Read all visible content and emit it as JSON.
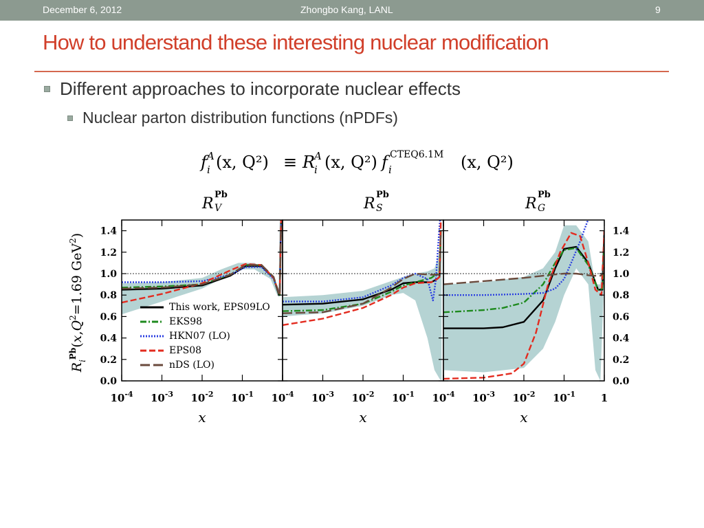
{
  "header": {
    "date": "December 6, 2012",
    "author": "Zhongbo Kang, LANL",
    "page": "9"
  },
  "title": "How to understand these interesting nuclear modification",
  "bullets": [
    {
      "level": 1,
      "text": "Different approaches to incorporate nuclear effects"
    },
    {
      "level": 2,
      "text": "Nuclear parton distribution functions (nPDFs)"
    }
  ],
  "colors": {
    "header_bg": "#8c9a90",
    "title": "#d13f2a",
    "rule": "#d5674f",
    "band": "#b5d3d3"
  },
  "equation": {
    "f": "f",
    "i": "i",
    "A": "A",
    "args": "(x, Q²)",
    "equiv": "≡",
    "R": "R",
    "CTEQ": "CTEQ6.1M"
  },
  "chart_data": {
    "type": "line",
    "x_scale": "log",
    "xlim": [
      0.0001,
      1
    ],
    "ylim": [
      0.0,
      1.5
    ],
    "x_ticks": [
      "10-4",
      "10-3",
      "10-2",
      "10-1",
      "10-4"
    ],
    "x_ticks_last": [
      "10-4",
      "10-3",
      "10-2",
      "10-1",
      "1"
    ],
    "y_ticks": [
      "1.4",
      "1.2",
      "1.0",
      "0.8",
      "0.6",
      "0.4",
      "0.2",
      "0.0"
    ],
    "xlabel": "x",
    "ylabel": "R_i^Pb(x,Q²=1.69 GeV²)",
    "panel_titles": [
      "R_V^Pb",
      "R_S^Pb",
      "R_G^Pb"
    ],
    "reference_line": 1.0,
    "legend": {
      "placement": "lower-left",
      "entries": [
        {
          "name": "This work, EPS09LO",
          "color": "#000000",
          "dash": "solid"
        },
        {
          "name": "EKS98",
          "color": "#1e8a1e",
          "dash": "dashdot"
        },
        {
          "name": "HKN07 (LO)",
          "color": "#2b3fe0",
          "dash": "dotted"
        },
        {
          "name": "EPS08",
          "color": "#e32b1f",
          "dash": "dashed"
        },
        {
          "name": "nDS (LO)",
          "color": "#6a4a3c",
          "dash": "longdash"
        }
      ]
    },
    "panels": [
      {
        "name": "R_V^Pb",
        "band": {
          "x": [
            0.0001,
            0.001,
            0.01,
            0.03,
            0.08,
            0.2,
            0.5,
            0.7,
            0.8,
            0.85
          ],
          "upper": [
            0.91,
            0.92,
            0.96,
            1.04,
            1.1,
            1.1,
            1.0,
            0.9,
            0.86,
            1.6
          ],
          "lower": [
            0.62,
            0.74,
            0.86,
            0.95,
            1.04,
            1.04,
            0.95,
            0.82,
            0.78,
            0.8
          ]
        },
        "series": [
          {
            "name": "This work, EPS09LO",
            "x": [
              0.0001,
              0.001,
              0.01,
              0.05,
              0.12,
              0.3,
              0.6,
              0.8,
              0.85,
              0.92
            ],
            "y": [
              0.85,
              0.86,
              0.89,
              0.98,
              1.07,
              1.07,
              0.96,
              0.81,
              0.8,
              1.55
            ]
          },
          {
            "name": "EKS98",
            "x": [
              0.0001,
              0.001,
              0.01,
              0.05,
              0.12,
              0.3,
              0.6,
              0.8,
              0.85,
              0.92
            ],
            "y": [
              0.87,
              0.88,
              0.9,
              0.99,
              1.08,
              1.08,
              0.96,
              0.82,
              0.8,
              1.5
            ]
          },
          {
            "name": "HKN07 (LO)",
            "x": [
              0.0001,
              0.001,
              0.01,
              0.05,
              0.12,
              0.3,
              0.6,
              0.8,
              0.85,
              0.92
            ],
            "y": [
              0.92,
              0.92,
              0.93,
              0.99,
              1.06,
              1.06,
              0.95,
              0.83,
              0.82,
              1.5
            ]
          },
          {
            "name": "EPS08",
            "x": [
              0.0001,
              0.001,
              0.01,
              0.05,
              0.12,
              0.3,
              0.6,
              0.8,
              0.85,
              0.92
            ],
            "y": [
              0.73,
              0.81,
              0.91,
              1.03,
              1.09,
              1.08,
              0.96,
              0.83,
              0.82,
              1.55
            ]
          },
          {
            "name": "nDS (LO)",
            "x": [
              0.0001,
              0.001,
              0.01,
              0.05,
              0.12,
              0.3,
              0.6,
              0.8,
              0.85,
              0.92
            ],
            "y": [
              0.86,
              0.87,
              0.9,
              0.99,
              1.08,
              1.08,
              0.97,
              0.82,
              0.8,
              1.45
            ]
          }
        ]
      },
      {
        "name": "R_S^Pb",
        "band": {
          "x": [
            0.0001,
            0.001,
            0.01,
            0.05,
            0.1,
            0.2,
            0.4,
            0.6,
            0.8,
            0.9
          ],
          "upper": [
            0.78,
            0.8,
            0.84,
            0.93,
            0.97,
            1.0,
            1.02,
            1.05,
            1.2,
            1.5
          ],
          "lower": [
            0.6,
            0.63,
            0.7,
            0.8,
            0.82,
            0.75,
            0.4,
            0.1,
            0.02,
            0.0
          ]
        },
        "series": [
          {
            "name": "This work, EPS09LO",
            "x": [
              0.0001,
              0.001,
              0.01,
              0.05,
              0.1,
              0.2,
              0.5,
              0.7,
              0.8,
              0.86
            ],
            "y": [
              0.71,
              0.72,
              0.76,
              0.85,
              0.91,
              0.92,
              0.92,
              0.95,
              0.97,
              1.4
            ]
          },
          {
            "name": "EKS98",
            "x": [
              0.0001,
              0.001,
              0.01,
              0.05,
              0.1,
              0.2,
              0.5,
              0.7,
              0.8,
              0.86
            ],
            "y": [
              0.65,
              0.66,
              0.72,
              0.83,
              0.89,
              0.92,
              0.96,
              1.0,
              1.02,
              1.4
            ]
          },
          {
            "name": "HKN07 (LO)",
            "x": [
              0.0001,
              0.001,
              0.01,
              0.05,
              0.1,
              0.2,
              0.4,
              0.55,
              0.65,
              0.75,
              0.82
            ],
            "y": [
              0.74,
              0.74,
              0.78,
              0.89,
              0.96,
              1.0,
              0.95,
              0.75,
              0.95,
              1.3,
              1.5
            ]
          },
          {
            "name": "EPS08",
            "x": [
              0.0001,
              0.001,
              0.01,
              0.05,
              0.1,
              0.2,
              0.5,
              0.7,
              0.8,
              0.86
            ],
            "y": [
              0.52,
              0.58,
              0.68,
              0.8,
              0.87,
              0.91,
              0.92,
              0.95,
              0.97,
              1.5
            ]
          },
          {
            "name": "nDS (LO)",
            "x": [
              0.0001,
              0.001,
              0.01,
              0.05,
              0.1,
              0.2,
              0.5,
              0.7,
              0.8,
              0.86
            ],
            "y": [
              0.63,
              0.64,
              0.72,
              0.87,
              0.95,
              1.0,
              0.99,
              0.99,
              0.99,
              1.4
            ]
          }
        ]
      },
      {
        "name": "R_G^Pb",
        "band": {
          "x": [
            0.0001,
            0.001,
            0.01,
            0.03,
            0.06,
            0.1,
            0.2,
            0.4,
            0.6,
            0.8,
            1.0
          ],
          "upper": [
            0.9,
            0.92,
            0.97,
            1.05,
            1.2,
            1.45,
            1.45,
            1.3,
            0.9,
            0.9,
            1.4
          ],
          "lower": [
            0.1,
            0.08,
            0.12,
            0.3,
            0.55,
            0.8,
            1.05,
            0.9,
            0.1,
            0.0,
            1.0
          ]
        },
        "series": [
          {
            "name": "This work, EPS09LO",
            "x": [
              0.0001,
              0.001,
              0.003,
              0.01,
              0.03,
              0.06,
              0.1,
              0.2,
              0.4,
              0.7,
              0.9,
              1.0
            ],
            "y": [
              0.49,
              0.49,
              0.5,
              0.55,
              0.75,
              1.05,
              1.23,
              1.25,
              1.1,
              0.85,
              0.85,
              1.4
            ]
          },
          {
            "name": "EKS98",
            "x": [
              0.0001,
              0.001,
              0.003,
              0.01,
              0.03,
              0.06,
              0.1,
              0.2,
              0.4,
              0.7,
              0.9,
              1.0
            ],
            "y": [
              0.64,
              0.66,
              0.68,
              0.73,
              0.9,
              1.1,
              1.22,
              1.24,
              1.08,
              0.85,
              0.86,
              1.3
            ]
          },
          {
            "name": "HKN07 (LO)",
            "x": [
              0.0001,
              0.001,
              0.01,
              0.03,
              0.06,
              0.1,
              0.15,
              0.25,
              0.35,
              0.5
            ],
            "y": [
              0.8,
              0.8,
              0.81,
              0.82,
              0.86,
              0.95,
              1.1,
              1.3,
              1.45,
              1.6
            ]
          },
          {
            "name": "EPS08",
            "x": [
              0.0001,
              0.001,
              0.005,
              0.01,
              0.02,
              0.04,
              0.08,
              0.15,
              0.25,
              0.4,
              0.6,
              0.85,
              1.0
            ],
            "y": [
              0.02,
              0.03,
              0.07,
              0.16,
              0.45,
              0.9,
              1.2,
              1.38,
              1.35,
              1.1,
              0.85,
              0.8,
              1.4
            ]
          },
          {
            "name": "nDS (LO)",
            "x": [
              0.0001,
              0.001,
              0.01,
              0.05,
              0.1,
              0.2,
              0.5,
              0.8,
              0.95,
              1.0
            ],
            "y": [
              0.9,
              0.93,
              0.96,
              0.99,
              1.0,
              1.0,
              0.98,
              0.98,
              1.0,
              1.3
            ]
          }
        ]
      }
    ]
  }
}
